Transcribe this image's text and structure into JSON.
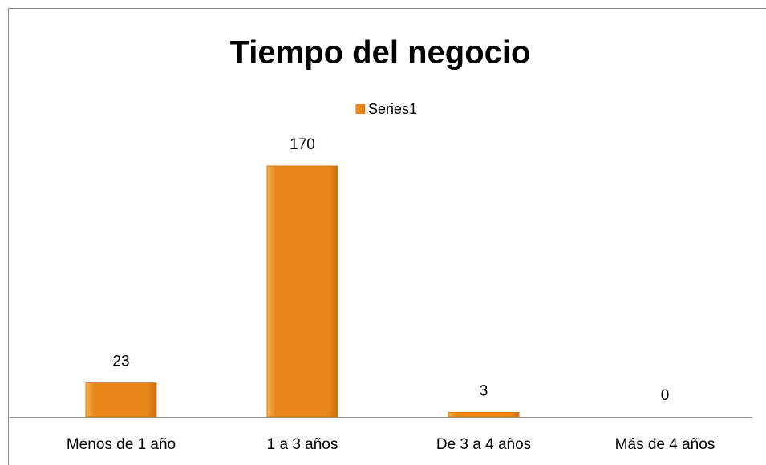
{
  "chart_data": {
    "type": "bar",
    "title": "Tiempo del negocio",
    "categories": [
      "Menos de 1 año",
      "1 a 3 años",
      "De 3 a 4 años",
      "Más de 4 años"
    ],
    "series": [
      {
        "name": "Series1",
        "color": "#e8861c",
        "values": [
          23,
          170,
          3,
          0
        ]
      }
    ],
    "legend": "top"
  }
}
